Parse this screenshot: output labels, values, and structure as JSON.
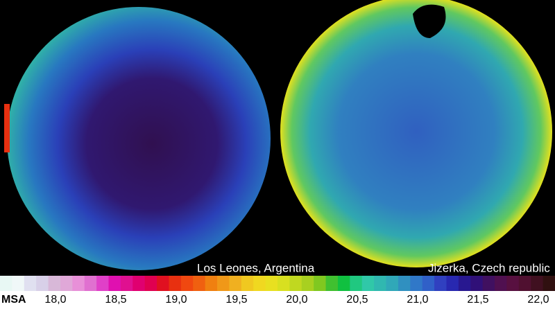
{
  "images": [
    {
      "label": "Los Leones, Argentina"
    },
    {
      "label": "Jizerka, Czech republic"
    }
  ],
  "colorbar": {
    "label": "MSA",
    "ticks": [
      "18,0",
      "18,5",
      "19,0",
      "19,5",
      "20,0",
      "20,5",
      "21,0",
      "21,5",
      "22,0"
    ],
    "colors": [
      "#e8f8f4",
      "#f0f8f8",
      "#e0e0f0",
      "#d8d0e8",
      "#d8b8d8",
      "#e0a8d8",
      "#e890d8",
      "#e070d0",
      "#e040c8",
      "#e010b0",
      "#e01090",
      "#e00070",
      "#e00050",
      "#e01020",
      "#e83010",
      "#f04810",
      "#f06010",
      "#f08010",
      "#f09818",
      "#f0b020",
      "#f0c820",
      "#f0d820",
      "#e8e020",
      "#d8e020",
      "#c0d820",
      "#a8d020",
      "#80c820",
      "#40c030",
      "#10c040",
      "#20c880",
      "#30c8a8",
      "#30b8b0",
      "#30a8b8",
      "#3090c0",
      "#3078c8",
      "#3060c8",
      "#3040c0",
      "#2828b0",
      "#281890",
      "#301078",
      "#401060",
      "#501050",
      "#581040",
      "#501030",
      "#401020",
      "#301010"
    ]
  }
}
